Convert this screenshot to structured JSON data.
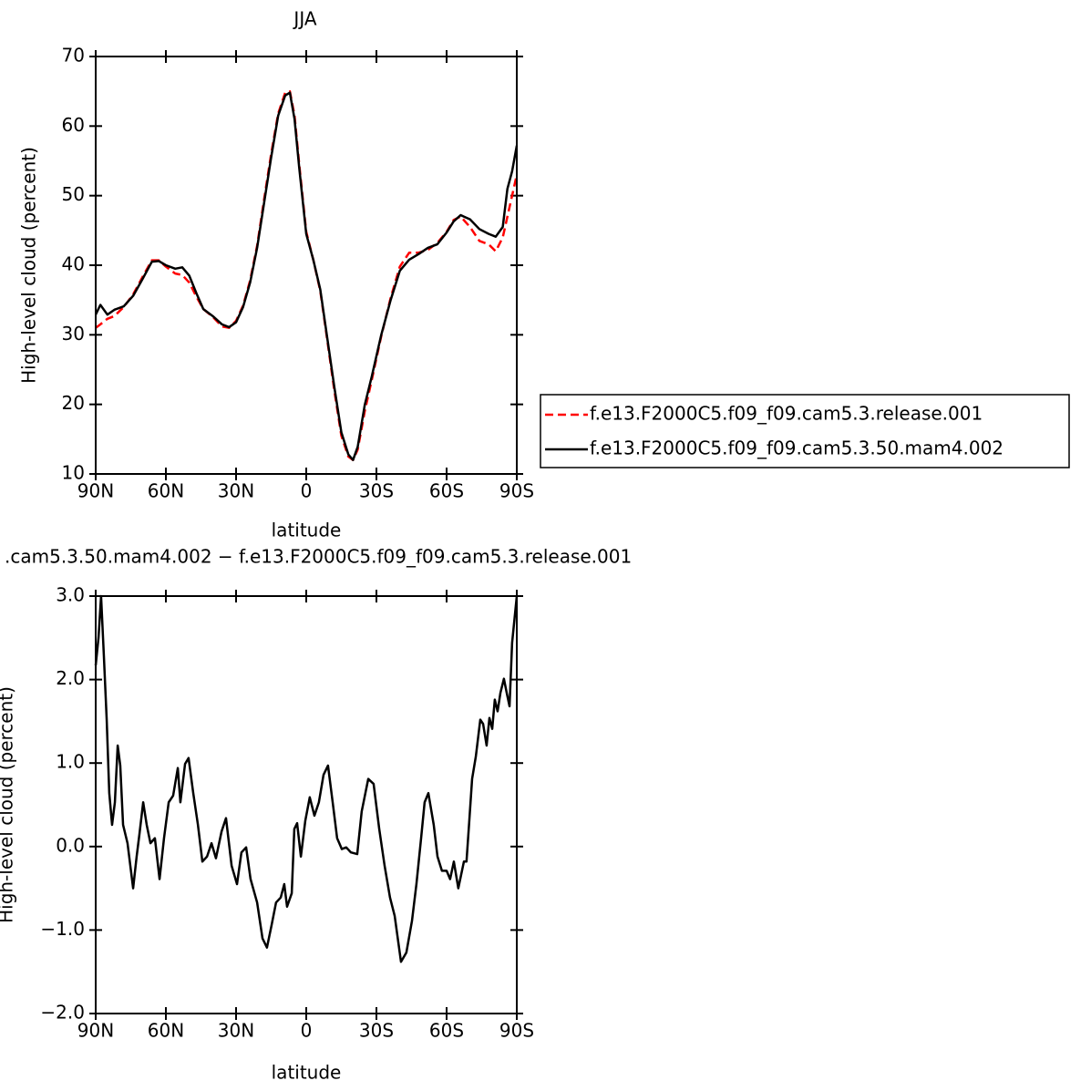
{
  "chart_data": [
    {
      "type": "line",
      "title": "JJA",
      "x_label": "latitude",
      "y_label": "High-level cloud (percent)",
      "legend": "outside-right",
      "xlim": [
        90,
        -90
      ],
      "ylim": [
        10,
        70
      ],
      "xticks": [
        {
          "value": 90,
          "label": "90N"
        },
        {
          "value": 60,
          "label": "60N"
        },
        {
          "value": 30,
          "label": "30N"
        },
        0,
        {
          "value": -30,
          "label": "30S"
        },
        {
          "value": -60,
          "label": "60S"
        },
        {
          "value": -90,
          "label": "90S"
        }
      ],
      "yticks": [
        10,
        20,
        30,
        40,
        50,
        60,
        70
      ],
      "x": [
        90,
        88,
        85,
        82,
        78,
        74,
        70,
        66,
        63,
        60,
        56,
        53,
        50,
        47,
        44,
        40,
        36,
        33,
        30,
        27,
        24,
        21,
        18,
        15,
        12,
        9,
        7,
        5,
        3,
        0,
        -3,
        -6,
        -9,
        -12,
        -15,
        -18,
        -20,
        -22,
        -25,
        -28,
        -32,
        -36,
        -40,
        -44,
        -48,
        -52,
        -56,
        -60,
        -63,
        -66,
        -70,
        -74,
        -78,
        -81,
        -84,
        -86,
        -88,
        -90
      ],
      "series": [
        {
          "name": "f.e13.F2000C5.f09_f09.cam5.3.release.001",
          "color": "#ff0000",
          "dash": "dashed",
          "values": [
            31.0,
            31.5,
            32.3,
            32.7,
            34.0,
            35.8,
            38.3,
            40.7,
            40.7,
            39.8,
            38.8,
            38.6,
            37.5,
            35.5,
            33.7,
            32.6,
            31.2,
            31.0,
            32.0,
            34.2,
            37.8,
            42.8,
            49.5,
            56.0,
            61.8,
            64.8,
            65.0,
            61.5,
            54.5,
            44.8,
            40.8,
            36.3,
            29.2,
            22.0,
            15.5,
            12.5,
            12.0,
            13.5,
            19.0,
            23.5,
            29.7,
            35.2,
            39.8,
            41.8,
            41.8,
            42.2,
            43.2,
            44.8,
            46.5,
            47.0,
            45.5,
            43.5,
            43.0,
            42.0,
            44.0,
            47.0,
            50.0,
            53.0
          ]
        },
        {
          "name": "f.e13.F2000C5.f09_f09.cam5.3.50.mam4.002",
          "color": "#000000",
          "dash": "solid",
          "values": [
            32.9,
            34.3,
            32.9,
            33.6,
            34.1,
            35.6,
            38.0,
            40.5,
            40.6,
            40.0,
            39.5,
            39.7,
            38.5,
            36.0,
            33.7,
            32.7,
            31.5,
            31.1,
            31.8,
            34.0,
            37.5,
            42.5,
            49.0,
            55.5,
            61.5,
            64.4,
            64.8,
            61.0,
            54.0,
            44.5,
            40.8,
            36.5,
            29.5,
            22.5,
            16.0,
            12.8,
            12.0,
            13.9,
            19.9,
            24.0,
            29.9,
            34.9,
            39.2,
            40.8,
            41.6,
            42.5,
            43.0,
            44.7,
            46.3,
            47.2,
            46.6,
            45.2,
            44.5,
            44.1,
            45.5,
            51.0,
            53.5,
            57.2
          ]
        }
      ]
    },
    {
      "type": "line",
      "title": ".cam5.3.50.mam4.002 − f.e13.F2000C5.f09_f09.cam5.3.release.001",
      "x_label": "latitude",
      "y_label": "High-level cloud (percent)",
      "xlim": [
        90,
        -90
      ],
      "ylim": [
        -2,
        3
      ],
      "xticks": [
        {
          "value": 90,
          "label": "90N"
        },
        {
          "value": 60,
          "label": "60N"
        },
        {
          "value": 30,
          "label": "30N"
        },
        0,
        {
          "value": -30,
          "label": "30S"
        },
        {
          "value": -60,
          "label": "60S"
        },
        {
          "value": -90,
          "label": "90S"
        }
      ],
      "yticks": [
        {
          "value": -2,
          "label": "−2.0"
        },
        {
          "value": -1,
          "label": "−1.0"
        },
        {
          "value": 0,
          "label": "0.0"
        },
        {
          "value": 1,
          "label": "1.0"
        },
        {
          "value": 2,
          "label": "2.0"
        },
        {
          "value": 3,
          "label": "3.0"
        }
      ],
      "x": [
        90,
        88.8,
        87.7,
        86.5,
        85.3,
        84.2,
        83.0,
        81.8,
        80.6,
        79.5,
        78.3,
        76.4,
        74.0,
        72.5,
        71.3,
        69.7,
        68.2,
        66.6,
        64.7,
        62.7,
        60.8,
        58.8,
        56.9,
        54.9,
        53.8,
        51.8,
        50.3,
        48.3,
        46.3,
        44.4,
        42.4,
        40.5,
        38.6,
        36.2,
        34.3,
        31.9,
        29.6,
        27.7,
        25.7,
        23.8,
        21.0,
        18.7,
        16.8,
        14.8,
        12.9,
        10.9,
        9.4,
        8.2,
        6.2,
        5.1,
        3.9,
        2.3,
        0.4,
        -1.5,
        -3.5,
        -5.4,
        -7.4,
        -9.3,
        -11.3,
        -13.2,
        -15.2,
        -17.1,
        -19.1,
        -21.8,
        -23.7,
        -26.5,
        -28.8,
        -31.2,
        -33.5,
        -35.8,
        -37.8,
        -40.5,
        -42.8,
        -45.2,
        -47.1,
        -49.1,
        -50.6,
        -52.2,
        -54.5,
        -56.1,
        -58.0,
        -60.0,
        -61.5,
        -63.1,
        -65.0,
        -67.4,
        -68.5,
        -69.7,
        -70.9,
        -72.5,
        -74.4,
        -75.6,
        -77.1,
        -78.3,
        -79.5,
        -80.6,
        -81.8,
        -83.0,
        -84.5,
        -85.7,
        -86.9,
        -88.0,
        -90
      ],
      "series": [
        {
          "color": "#000000",
          "dash": "solid",
          "values": [
            2.17,
            2.5,
            3.0,
            2.28,
            1.52,
            0.64,
            0.26,
            0.53,
            1.21,
            0.97,
            0.26,
            0.04,
            -0.5,
            -0.12,
            0.15,
            0.53,
            0.26,
            0.04,
            0.1,
            -0.39,
            0.1,
            0.53,
            0.61,
            0.94,
            0.53,
            0.99,
            1.06,
            0.64,
            0.26,
            -0.18,
            -0.12,
            0.04,
            -0.14,
            0.18,
            0.34,
            -0.23,
            -0.45,
            -0.07,
            -0.01,
            -0.39,
            -0.67,
            -1.1,
            -1.21,
            -0.94,
            -0.67,
            -0.61,
            -0.45,
            -0.72,
            -0.56,
            0.21,
            0.28,
            -0.12,
            0.31,
            0.59,
            0.37,
            0.53,
            0.86,
            0.97,
            0.53,
            0.1,
            -0.03,
            -0.01,
            -0.07,
            -0.09,
            0.42,
            0.81,
            0.75,
            0.21,
            -0.23,
            -0.61,
            -0.83,
            -1.38,
            -1.27,
            -0.89,
            -0.45,
            0.1,
            0.53,
            0.64,
            0.26,
            -0.12,
            -0.29,
            -0.29,
            -0.39,
            -0.18,
            -0.5,
            -0.18,
            -0.18,
            0.31,
            0.81,
            1.08,
            1.52,
            1.47,
            1.21,
            1.54,
            1.41,
            1.76,
            1.62,
            1.84,
            2.01,
            1.84,
            1.68,
            2.44,
            3.0
          ]
        }
      ]
    }
  ]
}
